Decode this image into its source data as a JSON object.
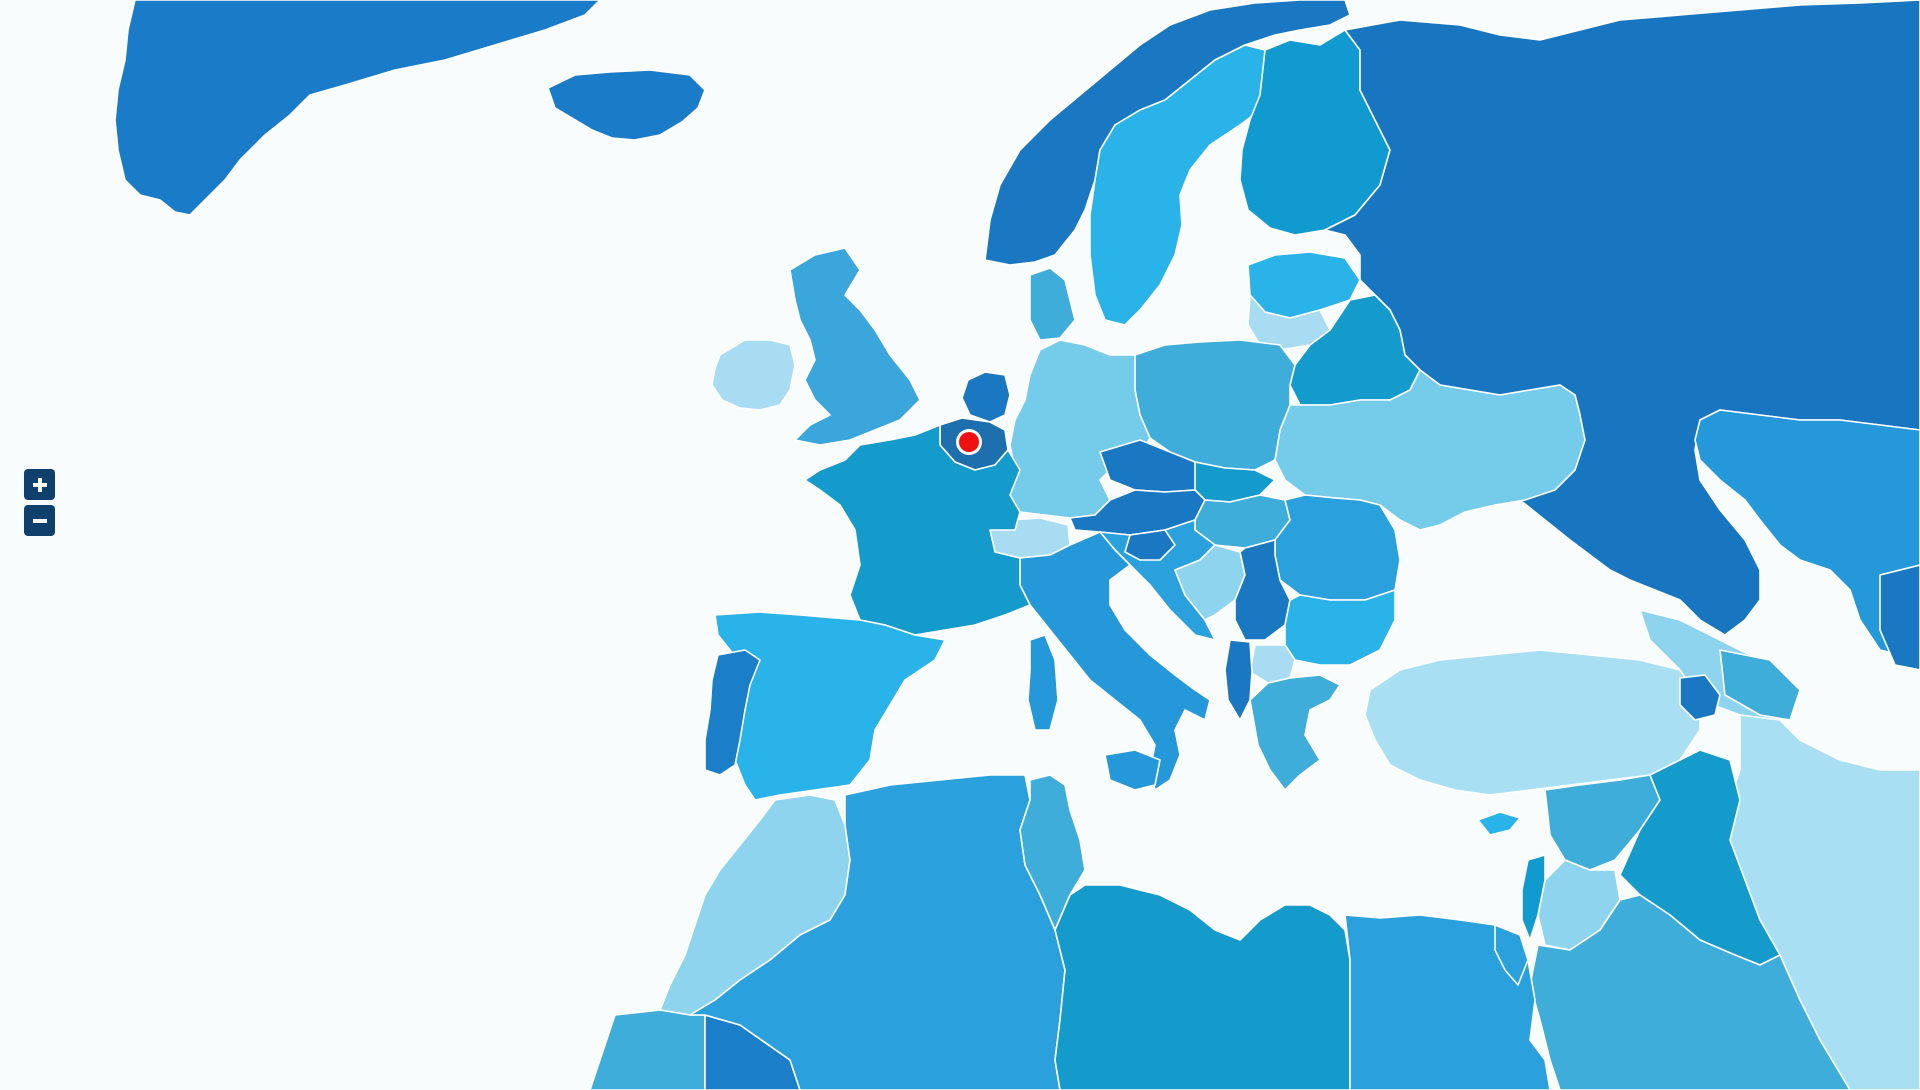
{
  "map": {
    "background_color": "#f8fcfd",
    "border_color": "#ffffff",
    "marker": {
      "location": "Belgium",
      "fill": "#ee1111",
      "ring": "#ffffff"
    },
    "controls": {
      "zoom_in_icon": "plus-icon",
      "zoom_out_icon": "minus-icon",
      "button_color": "#0f3f6b"
    },
    "regions": [
      {
        "id": "greenland",
        "fill": "#1a7cc8"
      },
      {
        "id": "iceland",
        "fill": "#1a7cc8"
      },
      {
        "id": "norway",
        "fill": "#1a78c2"
      },
      {
        "id": "sweden",
        "fill": "#2ab3e8"
      },
      {
        "id": "finland",
        "fill": "#119ad0"
      },
      {
        "id": "russia",
        "fill": "#1876c0"
      },
      {
        "id": "uk",
        "fill": "#3aa6dc"
      },
      {
        "id": "ireland",
        "fill": "#a7dcf3"
      },
      {
        "id": "france",
        "fill": "#149bcb"
      },
      {
        "id": "spain",
        "fill": "#2ab3e8"
      },
      {
        "id": "portugal",
        "fill": "#1a7ec8"
      },
      {
        "id": "germany",
        "fill": "#74cbea"
      },
      {
        "id": "poland",
        "fill": "#3fadd9"
      },
      {
        "id": "ukraine",
        "fill": "#74cbea"
      },
      {
        "id": "belarus",
        "fill": "#149bcb"
      },
      {
        "id": "italy",
        "fill": "#2498d8"
      },
      {
        "id": "turkey",
        "fill": "#a9dff3"
      },
      {
        "id": "north-africa-west",
        "fill": "#8fd4ef"
      },
      {
        "id": "algeria",
        "fill": "#2aa0dd"
      },
      {
        "id": "libya",
        "fill": "#149bcb"
      },
      {
        "id": "egypt",
        "fill": "#2aa0dd"
      },
      {
        "id": "middle-east",
        "fill": "#3fadd9"
      },
      {
        "id": "iran",
        "fill": "#a9dff3"
      }
    ]
  }
}
